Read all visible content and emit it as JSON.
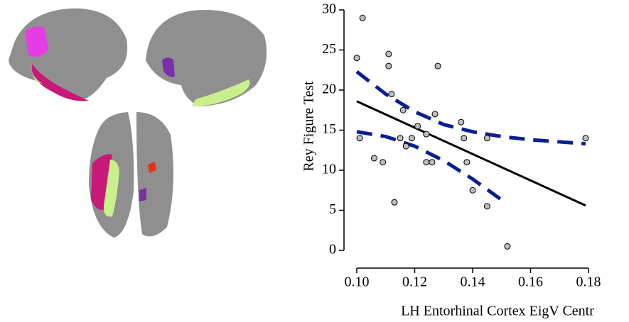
{
  "chart_data": {
    "type": "scatter",
    "y_label": "Rey Figure Test",
    "x_label": "LH Entorhinal Cortex EigV Centr",
    "x": [
      0.1,
      0.102,
      0.101,
      0.106,
      0.109,
      0.111,
      0.111,
      0.112,
      0.113,
      0.115,
      0.116,
      0.117,
      0.119,
      0.121,
      0.124,
      0.124,
      0.126,
      0.127,
      0.128,
      0.136,
      0.137,
      0.138,
      0.14,
      0.145,
      0.145,
      0.152,
      0.179
    ],
    "y": [
      24,
      29,
      14,
      11.5,
      11,
      24.5,
      23,
      19.5,
      6,
      14,
      17.5,
      13,
      14,
      15.5,
      14.5,
      11,
      11,
      17,
      23,
      16,
      14,
      11,
      7.5,
      14,
      5.5,
      0.5,
      14
    ],
    "point_color": "#bdbdbd",
    "fit": {
      "x": [
        0.1,
        0.179
      ],
      "y": [
        18.6,
        5.6
      ],
      "color": "#000000"
    },
    "ci_upper": {
      "x": [
        0.1,
        0.11,
        0.12,
        0.13,
        0.14,
        0.15,
        0.16,
        0.179
      ],
      "y": [
        22.3,
        19.5,
        17.3,
        15.7,
        14.8,
        14.2,
        13.8,
        13.3
      ],
      "color": "#0a1f8f"
    },
    "ci_lower": {
      "x": [
        0.1,
        0.11,
        0.12,
        0.13,
        0.14,
        0.15
      ],
      "y": [
        14.8,
        14.2,
        13.0,
        11.2,
        8.9,
        6.3
      ],
      "color": "#0a1f8f"
    },
    "xlim": [
      0.1,
      0.18
    ],
    "ylim": [
      0,
      30
    ],
    "xticks": [
      {
        "value": 0.1,
        "label": "0.10"
      },
      0.12,
      0.14,
      0.16,
      0.18
    ],
    "yticks": [
      0,
      5,
      10,
      15,
      20,
      25,
      30
    ]
  }
}
